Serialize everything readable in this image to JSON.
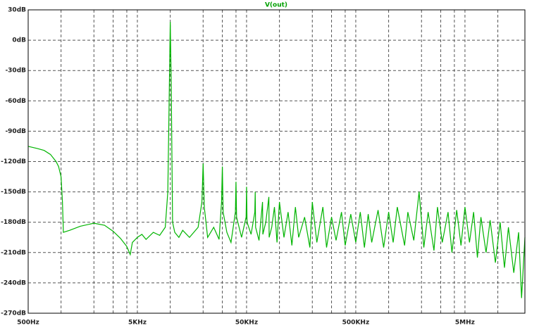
{
  "chart_data": {
    "type": "line",
    "title": "V(out)",
    "xscale": "log",
    "grid": true,
    "xlim": [
      500,
      17700000
    ],
    "xticks": [
      {
        "value": 500,
        "label": "500Hz"
      },
      {
        "value": 5000,
        "label": "5KHz"
      },
      {
        "value": 50000,
        "label": "50KHz"
      },
      {
        "value": 500000,
        "label": "500KHz"
      },
      {
        "value": 5000000,
        "label": "5MHz"
      }
    ],
    "x_minor_ticks": [
      1000,
      2000,
      3000,
      4000,
      10000,
      20000,
      30000,
      40000,
      100000,
      200000,
      300000,
      400000,
      1000000,
      2000000,
      3000000,
      4000000,
      10000000
    ],
    "ylim": [
      -270,
      30
    ],
    "yticks": [
      {
        "value": 30,
        "label": "30dB"
      },
      {
        "value": 0,
        "label": "0dB"
      },
      {
        "value": -30,
        "label": "-30dB"
      },
      {
        "value": -60,
        "label": "-60dB"
      },
      {
        "value": -90,
        "label": "-90dB"
      },
      {
        "value": -120,
        "label": "-120dB"
      },
      {
        "value": -150,
        "label": "-150dB"
      },
      {
        "value": -180,
        "label": "-180dB"
      },
      {
        "value": -210,
        "label": "-210dB"
      },
      {
        "value": -240,
        "label": "-240dB"
      },
      {
        "value": -270,
        "label": "-270dB"
      }
    ],
    "x": [
      500,
      600,
      700,
      800,
      900,
      950,
      1000,
      1030,
      1050,
      1200,
      1500,
      2000,
      2500,
      3000,
      3500,
      4000,
      4300,
      4500,
      5000,
      5500,
      6000,
      7000,
      8000,
      9000,
      9500,
      9800,
      10000,
      10200,
      10500,
      11000,
      12000,
      13000,
      15000,
      18000,
      19500,
      20000,
      20500,
      22000,
      25000,
      28000,
      29500,
      30000,
      30500,
      33000,
      36000,
      39500,
      40000,
      40500,
      45000,
      49500,
      50000,
      50500,
      55000,
      59500,
      60000,
      60500,
      65000,
      70000,
      70500,
      75000,
      80000,
      80500,
      85000,
      90000,
      95000,
      100000,
      110000,
      120000,
      130000,
      140000,
      150000,
      170000,
      190000,
      200000,
      220000,
      250000,
      270000,
      300000,
      330000,
      370000,
      400000,
      450000,
      500000,
      550000,
      600000,
      650000,
      700000,
      800000,
      900000,
      1000000,
      1100000,
      1200000,
      1400000,
      1500000,
      1700000,
      1900000,
      2100000,
      2300000,
      2600000,
      2800000,
      3100000,
      3500000,
      3800000,
      4200000,
      4600000,
      5000000,
      5500000,
      6000000,
      6500000,
      7000000,
      7800000,
      8500000,
      9500000,
      10500000,
      11500000,
      12500000,
      14000000,
      15500000,
      16500000,
      17700000
    ],
    "series": [
      {
        "color": "#00b400",
        "values": [
          -105,
          -107,
          -109,
          -113,
          -120,
          -125,
          -135,
          -160,
          -190,
          -188,
          -184,
          -181,
          -183,
          -189,
          -196,
          -204,
          -212,
          -200,
          -195,
          -192,
          -197,
          -190,
          -193,
          -185,
          -150,
          -50,
          18,
          -40,
          -180,
          -190,
          -195,
          -188,
          -195,
          -185,
          -160,
          -122,
          -165,
          -195,
          -185,
          -197,
          -160,
          -125,
          -170,
          -190,
          -200,
          -170,
          -140,
          -175,
          -195,
          -175,
          -145,
          -180,
          -192,
          -170,
          -150,
          -185,
          -198,
          -160,
          -192,
          -180,
          -155,
          -195,
          -185,
          -165,
          -200,
          -160,
          -195,
          -170,
          -203,
          -165,
          -195,
          -175,
          -205,
          -160,
          -200,
          -165,
          -205,
          -175,
          -198,
          -170,
          -203,
          -172,
          -200,
          -170,
          -205,
          -172,
          -200,
          -168,
          -205,
          -170,
          -200,
          -165,
          -203,
          -170,
          -198,
          -150,
          -205,
          -170,
          -208,
          -165,
          -200,
          -170,
          -210,
          -168,
          -203,
          -165,
          -200,
          -170,
          -215,
          -175,
          -210,
          -178,
          -220,
          -180,
          -225,
          -185,
          -230,
          -190,
          -255,
          -195
        ]
      }
    ]
  }
}
